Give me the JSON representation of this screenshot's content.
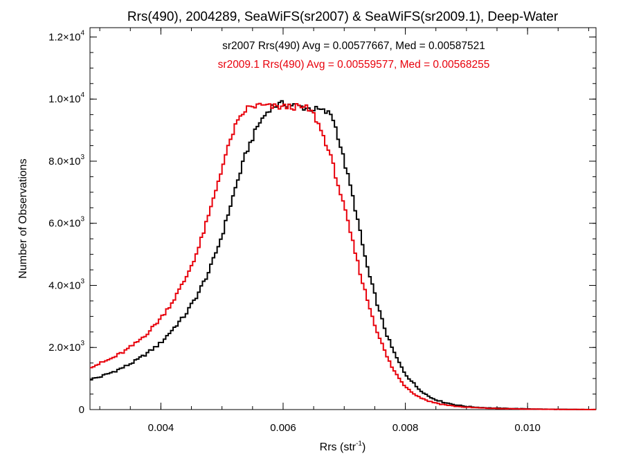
{
  "chart_data": {
    "type": "histogram-step",
    "title": "Rrs(490), 2004289, SeaWiFS(sr2007) & SeaWiFS(sr2009.1), Deep-Water",
    "xlabel": {
      "base": "Rrs (str",
      "sup": "-1",
      "tail": ")"
    },
    "ylabel": "Number of Observations",
    "xlim": [
      0.00284,
      0.01112
    ],
    "ylim": [
      0,
      12300
    ],
    "x_ticks": [
      {
        "value": 0.004,
        "label": "0.004"
      },
      {
        "value": 0.006,
        "label": "0.006"
      },
      {
        "value": 0.008,
        "label": "0.008"
      },
      {
        "value": 0.01,
        "label": "0.010"
      }
    ],
    "x_minor_step": 0.0005,
    "y_ticks": [
      {
        "value": 0,
        "mant": "0",
        "exp": ""
      },
      {
        "value": 2000,
        "mant": "2.0×10",
        "exp": "3"
      },
      {
        "value": 4000,
        "mant": "4.0×10",
        "exp": "3"
      },
      {
        "value": 6000,
        "mant": "6.0×10",
        "exp": "3"
      },
      {
        "value": 8000,
        "mant": "8.0×10",
        "exp": "3"
      },
      {
        "value": 10000,
        "mant": "1.0×10",
        "exp": "4"
      },
      {
        "value": 12000,
        "mant": "1.2×10",
        "exp": "4"
      }
    ],
    "y_minor_step": 500,
    "bin_width": 4e-05,
    "legend": [
      {
        "text": "sr2007 Rrs(490) Avg = 0.00577667, Med = 0.00587521",
        "color": "#000000"
      },
      {
        "text": "sr2009.1 Rrs(490) Avg = 0.00559577, Med = 0.00568255",
        "color": "#e8000b"
      }
    ],
    "series": [
      {
        "name": "sr2007",
        "color": "#000000",
        "points": [
          [
            0.0028,
            950
          ],
          [
            0.003,
            1050
          ],
          [
            0.0032,
            1200
          ],
          [
            0.0034,
            1370
          ],
          [
            0.0036,
            1580
          ],
          [
            0.0038,
            1850
          ],
          [
            0.004,
            2150
          ],
          [
            0.0042,
            2600
          ],
          [
            0.0044,
            3050
          ],
          [
            0.0046,
            3700
          ],
          [
            0.0048,
            4500
          ],
          [
            0.005,
            5600
          ],
          [
            0.0052,
            7000
          ],
          [
            0.0054,
            8300
          ],
          [
            0.0056,
            9200
          ],
          [
            0.0058,
            9750
          ],
          [
            0.006,
            9850
          ],
          [
            0.0062,
            9800
          ],
          [
            0.0064,
            9700
          ],
          [
            0.0066,
            9650
          ],
          [
            0.0068,
            9500
          ],
          [
            0.0069,
            8800
          ],
          [
            0.007,
            8000
          ],
          [
            0.0071,
            7200
          ],
          [
            0.0072,
            6300
          ],
          [
            0.0073,
            5300
          ],
          [
            0.0074,
            4400
          ],
          [
            0.0075,
            3700
          ],
          [
            0.0076,
            3000
          ],
          [
            0.0077,
            2400
          ],
          [
            0.0078,
            1900
          ],
          [
            0.0079,
            1500
          ],
          [
            0.008,
            1150
          ],
          [
            0.0082,
            700
          ],
          [
            0.0084,
            400
          ],
          [
            0.0086,
            250
          ],
          [
            0.0088,
            160
          ],
          [
            0.009,
            100
          ],
          [
            0.0092,
            70
          ],
          [
            0.0094,
            50
          ],
          [
            0.0096,
            40
          ],
          [
            0.0098,
            30
          ],
          [
            0.01,
            22
          ],
          [
            0.0102,
            15
          ],
          [
            0.0104,
            10
          ],
          [
            0.0106,
            6
          ],
          [
            0.0108,
            4
          ],
          [
            0.011,
            2
          ],
          [
            0.0112,
            1
          ]
        ]
      },
      {
        "name": "sr2009.1",
        "color": "#e8000b",
        "points": [
          [
            0.0028,
            1350
          ],
          [
            0.003,
            1480
          ],
          [
            0.0032,
            1650
          ],
          [
            0.0034,
            1870
          ],
          [
            0.0036,
            2150
          ],
          [
            0.0038,
            2500
          ],
          [
            0.004,
            2950
          ],
          [
            0.0042,
            3500
          ],
          [
            0.0044,
            4200
          ],
          [
            0.0046,
            5100
          ],
          [
            0.0048,
            6350
          ],
          [
            0.005,
            7800
          ],
          [
            0.0052,
            9050
          ],
          [
            0.0054,
            9700
          ],
          [
            0.0056,
            9800
          ],
          [
            0.0058,
            9750
          ],
          [
            0.006,
            9750
          ],
          [
            0.0062,
            9750
          ],
          [
            0.0064,
            9700
          ],
          [
            0.0065,
            9500
          ],
          [
            0.0066,
            9100
          ],
          [
            0.0067,
            8600
          ],
          [
            0.0068,
            8000
          ],
          [
            0.0069,
            7250
          ],
          [
            0.007,
            6500
          ],
          [
            0.0071,
            5700
          ],
          [
            0.0072,
            4900
          ],
          [
            0.0073,
            4100
          ],
          [
            0.0074,
            3400
          ],
          [
            0.0075,
            2750
          ],
          [
            0.0076,
            2200
          ],
          [
            0.0077,
            1700
          ],
          [
            0.0078,
            1300
          ],
          [
            0.0079,
            1000
          ],
          [
            0.008,
            750
          ],
          [
            0.0082,
            430
          ],
          [
            0.0084,
            260
          ],
          [
            0.0086,
            170
          ],
          [
            0.0088,
            110
          ],
          [
            0.009,
            75
          ],
          [
            0.0092,
            55
          ],
          [
            0.0094,
            40
          ],
          [
            0.0096,
            30
          ],
          [
            0.0098,
            22
          ],
          [
            0.01,
            16
          ],
          [
            0.0102,
            11
          ],
          [
            0.0104,
            8
          ],
          [
            0.0106,
            5
          ],
          [
            0.0108,
            3
          ],
          [
            0.011,
            2
          ],
          [
            0.0112,
            1
          ]
        ]
      }
    ]
  }
}
